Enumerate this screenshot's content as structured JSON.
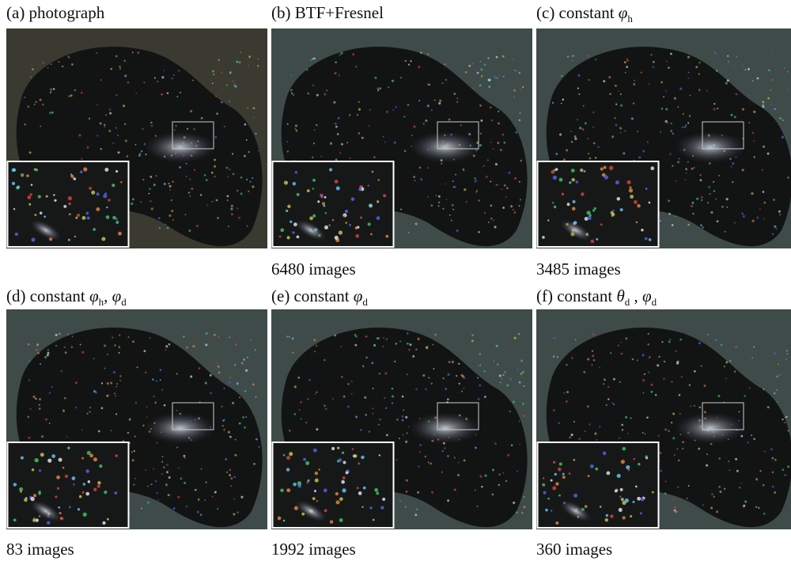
{
  "panels": [
    {
      "caption": [
        "(a) photograph"
      ],
      "count": null
    },
    {
      "caption": [
        "(b) BTF+Fresnel"
      ],
      "count": "6480 images"
    },
    {
      "caption": [
        "(c) constant ",
        {
          "sym": "φ",
          "sub": "h"
        }
      ],
      "count": "3485 images"
    },
    {
      "caption": [
        "(d) constant ",
        {
          "sym": "φ",
          "sub": "h"
        },
        ", ",
        {
          "sym": "φ",
          "sub": "d"
        }
      ],
      "count": "83 images"
    },
    {
      "caption": [
        "(e) constant ",
        {
          "sym": "φ",
          "sub": "d"
        }
      ],
      "count": "1992 images"
    },
    {
      "caption": [
        "(f) constant ",
        {
          "sym": "θ",
          "sub": "d"
        },
        " , ",
        {
          "sym": "φ",
          "sub": "d"
        }
      ],
      "count": "360 images"
    }
  ]
}
